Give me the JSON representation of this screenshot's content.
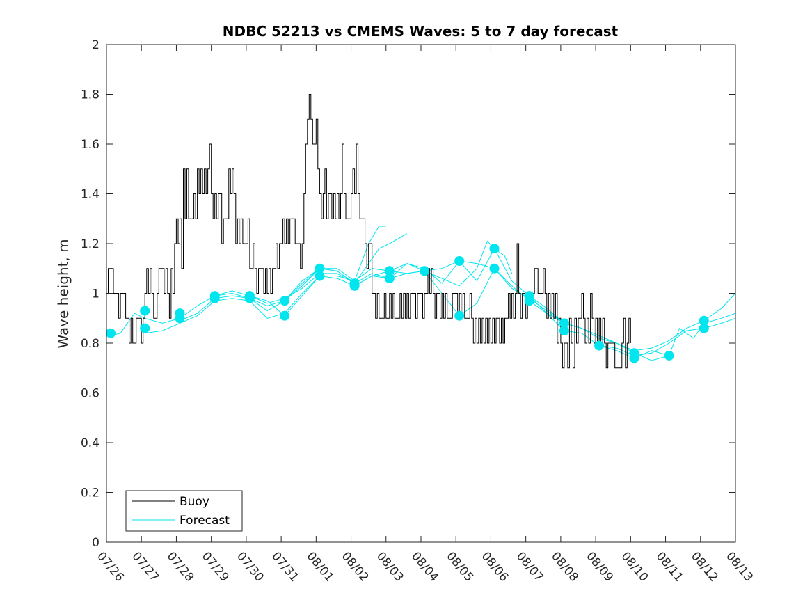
{
  "chart_data": {
    "type": "line",
    "title": "NDBC 52213 vs CMEMS Waves: 5 to 7 day forecast",
    "xlabel": "",
    "ylabel": "Wave height, m",
    "xlim": [
      0,
      18
    ],
    "ylim": [
      0,
      2
    ],
    "x_ticks": [
      "07/26",
      "07/27",
      "07/28",
      "07/29",
      "07/30",
      "07/31",
      "08/01",
      "08/02",
      "08/03",
      "08/04",
      "08/05",
      "08/06",
      "08/07",
      "08/08",
      "08/09",
      "08/10",
      "08/11",
      "08/12",
      "08/13"
    ],
    "y_ticks": [
      "0",
      "0.2",
      "0.4",
      "0.6",
      "0.8",
      "1",
      "1.2",
      "1.4",
      "1.6",
      "1.8",
      "2"
    ],
    "grid": false,
    "legend": {
      "placement": "bottom-left",
      "entries": [
        {
          "name": "Buoy",
          "color": "#000000"
        },
        {
          "name": "Forecast",
          "color": "#00e5ee"
        }
      ]
    },
    "colors": {
      "buoy": "#000000",
      "forecast": "#00e5ee",
      "axes": "#262626"
    },
    "series": [
      {
        "name": "Buoy",
        "x_unit": "days since 07/26",
        "points": [
          [
            0.0,
            1.0
          ],
          [
            0.05,
            1.1
          ],
          [
            0.15,
            1.1
          ],
          [
            0.2,
            1.0
          ],
          [
            0.3,
            1.0
          ],
          [
            0.35,
            0.9
          ],
          [
            0.4,
            1.0
          ],
          [
            0.5,
            1.0
          ],
          [
            0.55,
            0.9
          ],
          [
            0.6,
            0.9
          ],
          [
            0.65,
            0.8
          ],
          [
            0.7,
            0.9
          ],
          [
            0.75,
            0.8
          ],
          [
            0.85,
            0.9
          ],
          [
            0.95,
            0.9
          ],
          [
            1.0,
            0.8
          ],
          [
            1.05,
            0.9
          ],
          [
            1.1,
            1.0
          ],
          [
            1.15,
            1.1
          ],
          [
            1.2,
            1.0
          ],
          [
            1.25,
            1.1
          ],
          [
            1.3,
            1.0
          ],
          [
            1.35,
            0.9
          ],
          [
            1.45,
            1.0
          ],
          [
            1.5,
            1.1
          ],
          [
            1.6,
            1.1
          ],
          [
            1.65,
            1.0
          ],
          [
            1.7,
            1.1
          ],
          [
            1.75,
            1.0
          ],
          [
            1.8,
            0.9
          ],
          [
            1.85,
            1.1
          ],
          [
            1.9,
            1.0
          ],
          [
            1.95,
            1.2
          ],
          [
            2.0,
            1.3
          ],
          [
            2.05,
            1.2
          ],
          [
            2.1,
            1.3
          ],
          [
            2.15,
            1.1
          ],
          [
            2.2,
            1.5
          ],
          [
            2.25,
            1.3
          ],
          [
            2.3,
            1.5
          ],
          [
            2.35,
            1.3
          ],
          [
            2.45,
            1.3
          ],
          [
            2.5,
            1.4
          ],
          [
            2.55,
            1.3
          ],
          [
            2.6,
            1.5
          ],
          [
            2.65,
            1.4
          ],
          [
            2.7,
            1.5
          ],
          [
            2.75,
            1.4
          ],
          [
            2.8,
            1.5
          ],
          [
            2.85,
            1.4
          ],
          [
            2.9,
            1.5
          ],
          [
            2.95,
            1.6
          ],
          [
            3.0,
            1.4
          ],
          [
            3.05,
            1.3
          ],
          [
            3.1,
            1.4
          ],
          [
            3.15,
            1.3
          ],
          [
            3.2,
            1.4
          ],
          [
            3.3,
            1.2
          ],
          [
            3.35,
            1.3
          ],
          [
            3.45,
            1.3
          ],
          [
            3.5,
            1.5
          ],
          [
            3.55,
            1.4
          ],
          [
            3.6,
            1.5
          ],
          [
            3.65,
            1.4
          ],
          [
            3.7,
            1.2
          ],
          [
            3.75,
            1.3
          ],
          [
            3.8,
            1.2
          ],
          [
            3.85,
            1.3
          ],
          [
            3.9,
            1.2
          ],
          [
            4.0,
            1.2
          ],
          [
            4.05,
            1.3
          ],
          [
            4.1,
            1.1
          ],
          [
            4.2,
            1.2
          ],
          [
            4.25,
            1.1
          ],
          [
            4.3,
            1.0
          ],
          [
            4.35,
            1.1
          ],
          [
            4.45,
            1.1
          ],
          [
            4.5,
            1.0
          ],
          [
            4.55,
            1.1
          ],
          [
            4.6,
            1.0
          ],
          [
            4.65,
            1.1
          ],
          [
            4.7,
            1.0
          ],
          [
            4.75,
            1.1
          ],
          [
            4.8,
            1.1
          ],
          [
            4.85,
            1.2
          ],
          [
            4.9,
            1.1
          ],
          [
            4.95,
            1.2
          ],
          [
            5.0,
            1.2
          ],
          [
            5.05,
            1.3
          ],
          [
            5.1,
            1.2
          ],
          [
            5.15,
            1.3
          ],
          [
            5.2,
            1.2
          ],
          [
            5.25,
            1.3
          ],
          [
            5.35,
            1.3
          ],
          [
            5.4,
            1.2
          ],
          [
            5.5,
            1.2
          ],
          [
            5.55,
            1.1
          ],
          [
            5.6,
            1.2
          ],
          [
            5.65,
            1.4
          ],
          [
            5.7,
            1.6
          ],
          [
            5.75,
            1.7
          ],
          [
            5.8,
            1.8
          ],
          [
            5.85,
            1.7
          ],
          [
            5.9,
            1.6
          ],
          [
            5.95,
            1.6
          ],
          [
            6.0,
            1.7
          ],
          [
            6.05,
            1.5
          ],
          [
            6.1,
            1.4
          ],
          [
            6.15,
            1.3
          ],
          [
            6.2,
            1.4
          ],
          [
            6.25,
            1.5
          ],
          [
            6.3,
            1.3
          ],
          [
            6.35,
            1.4
          ],
          [
            6.45,
            1.3
          ],
          [
            6.5,
            1.4
          ],
          [
            6.55,
            1.3
          ],
          [
            6.6,
            1.4
          ],
          [
            6.65,
            1.3
          ],
          [
            6.7,
            1.4
          ],
          [
            6.75,
            1.6
          ],
          [
            6.8,
            1.4
          ],
          [
            6.85,
            1.3
          ],
          [
            6.95,
            1.3
          ],
          [
            7.0,
            1.4
          ],
          [
            7.05,
            1.5
          ],
          [
            7.1,
            1.4
          ],
          [
            7.15,
            1.6
          ],
          [
            7.2,
            1.4
          ],
          [
            7.25,
            1.3
          ],
          [
            7.35,
            1.3
          ],
          [
            7.4,
            1.2
          ],
          [
            7.45,
            1.1
          ],
          [
            7.5,
            1.2
          ],
          [
            7.55,
            1.2
          ],
          [
            7.6,
            1.0
          ],
          [
            7.65,
            1.0
          ],
          [
            7.7,
            0.9
          ],
          [
            7.75,
            1.0
          ],
          [
            7.8,
            0.9
          ],
          [
            7.9,
            0.9
          ],
          [
            7.95,
            1.0
          ],
          [
            8.0,
            0.9
          ],
          [
            8.05,
            0.9
          ],
          [
            8.1,
            1.0
          ],
          [
            8.15,
            0.9
          ],
          [
            8.2,
            1.0
          ],
          [
            8.25,
            0.9
          ],
          [
            8.35,
            0.9
          ],
          [
            8.4,
            1.0
          ],
          [
            8.45,
            0.9
          ],
          [
            8.5,
            1.0
          ],
          [
            8.55,
            0.9
          ],
          [
            8.6,
            1.0
          ],
          [
            8.65,
            0.9
          ],
          [
            8.7,
            1.0
          ],
          [
            8.8,
            1.0
          ],
          [
            8.85,
            0.9
          ],
          [
            8.9,
            1.0
          ],
          [
            9.0,
            1.0
          ],
          [
            9.05,
            0.9
          ],
          [
            9.1,
            1.0
          ],
          [
            9.15,
            1.0
          ],
          [
            9.2,
            1.1
          ],
          [
            9.25,
            1.0
          ],
          [
            9.3,
            1.1
          ],
          [
            9.35,
            1.0
          ],
          [
            9.4,
            0.9
          ],
          [
            9.45,
            1.0
          ],
          [
            9.5,
            1.0
          ],
          [
            9.55,
            0.9
          ],
          [
            9.6,
            1.0
          ],
          [
            9.65,
            0.9
          ],
          [
            9.7,
            1.0
          ],
          [
            9.75,
            0.9
          ],
          [
            9.85,
            0.9
          ],
          [
            9.9,
            1.0
          ],
          [
            10.0,
            1.0
          ],
          [
            10.05,
            0.9
          ],
          [
            10.1,
            1.0
          ],
          [
            10.15,
            0.9
          ],
          [
            10.2,
            1.0
          ],
          [
            10.25,
            0.9
          ],
          [
            10.35,
            0.9
          ],
          [
            10.4,
            1.0
          ],
          [
            10.45,
            0.9
          ],
          [
            10.5,
            0.8
          ],
          [
            10.55,
            0.9
          ],
          [
            10.6,
            0.8
          ],
          [
            10.65,
            0.9
          ],
          [
            10.7,
            0.8
          ],
          [
            10.75,
            0.9
          ],
          [
            10.8,
            0.8
          ],
          [
            10.85,
            0.9
          ],
          [
            10.9,
            0.8
          ],
          [
            10.95,
            0.9
          ],
          [
            11.0,
            0.8
          ],
          [
            11.05,
            0.9
          ],
          [
            11.1,
            0.8
          ],
          [
            11.15,
            0.9
          ],
          [
            11.2,
            0.9
          ],
          [
            11.25,
            0.8
          ],
          [
            11.3,
            0.9
          ],
          [
            11.35,
            0.8
          ],
          [
            11.4,
            0.9
          ],
          [
            11.45,
            0.9
          ],
          [
            11.5,
            1.0
          ],
          [
            11.55,
            0.9
          ],
          [
            11.6,
            1.0
          ],
          [
            11.65,
            0.9
          ],
          [
            11.7,
            1.0
          ],
          [
            11.75,
            1.2
          ],
          [
            11.8,
            1.0
          ],
          [
            11.85,
            0.9
          ],
          [
            11.9,
            1.0
          ],
          [
            11.95,
            1.0
          ],
          [
            12.0,
            0.9
          ],
          [
            12.05,
            1.0
          ],
          [
            12.1,
            1.0
          ],
          [
            12.15,
            1.0
          ],
          [
            12.2,
            1.0
          ],
          [
            12.25,
            1.1
          ],
          [
            12.3,
            1.1
          ],
          [
            12.35,
            1.0
          ],
          [
            12.4,
            1.0
          ],
          [
            12.45,
            1.0
          ],
          [
            12.5,
            1.1
          ],
          [
            12.55,
            1.0
          ],
          [
            12.6,
            0.9
          ],
          [
            12.65,
            1.0
          ],
          [
            12.7,
            0.9
          ],
          [
            12.75,
            1.0
          ],
          [
            12.8,
            0.9
          ],
          [
            12.85,
            1.0
          ],
          [
            12.9,
            0.8
          ],
          [
            12.95,
            0.9
          ],
          [
            13.0,
            0.8
          ],
          [
            13.05,
            0.7
          ],
          [
            13.1,
            0.8
          ],
          [
            13.15,
            0.8
          ],
          [
            13.2,
            0.7
          ],
          [
            13.25,
            0.9
          ],
          [
            13.3,
            0.8
          ],
          [
            13.35,
            0.7
          ],
          [
            13.4,
            0.9
          ],
          [
            13.45,
            0.8
          ],
          [
            13.5,
            0.9
          ],
          [
            13.55,
            0.9
          ],
          [
            13.6,
            1.0
          ],
          [
            13.65,
            0.9
          ],
          [
            13.7,
            0.8
          ],
          [
            13.75,
            0.9
          ],
          [
            13.8,
            0.8
          ],
          [
            13.85,
            1.0
          ],
          [
            13.9,
            0.9
          ],
          [
            13.95,
            0.8
          ],
          [
            14.0,
            0.9
          ],
          [
            14.05,
            0.8
          ],
          [
            14.1,
            0.9
          ],
          [
            14.15,
            0.8
          ],
          [
            14.2,
            0.9
          ],
          [
            14.25,
            0.8
          ],
          [
            14.3,
            0.7
          ],
          [
            14.35,
            0.8
          ],
          [
            14.4,
            0.8
          ],
          [
            14.45,
            0.8
          ],
          [
            14.5,
            0.8
          ],
          [
            14.55,
            0.7
          ],
          [
            14.6,
            0.7
          ],
          [
            14.65,
            0.7
          ],
          [
            14.7,
            0.7
          ],
          [
            14.75,
            0.8
          ],
          [
            14.8,
            0.9
          ],
          [
            14.85,
            0.7
          ],
          [
            14.9,
            0.8
          ],
          [
            14.95,
            0.9
          ],
          [
            15.0,
            0.8
          ]
        ]
      }
    ],
    "forecast_markers": [
      [
        0.12,
        0.84
      ],
      [
        1.1,
        0.93
      ],
      [
        1.1,
        0.86
      ],
      [
        2.1,
        0.92
      ],
      [
        2.1,
        0.9
      ],
      [
        3.1,
        0.99
      ],
      [
        3.1,
        0.98
      ],
      [
        4.1,
        0.99
      ],
      [
        4.1,
        0.98
      ],
      [
        5.1,
        0.97
      ],
      [
        5.1,
        0.91
      ],
      [
        6.1,
        1.1
      ],
      [
        6.1,
        1.07
      ],
      [
        7.1,
        1.04
      ],
      [
        7.1,
        1.03
      ],
      [
        8.1,
        1.09
      ],
      [
        8.1,
        1.06
      ],
      [
        9.1,
        1.09
      ],
      [
        10.1,
        1.13
      ],
      [
        10.1,
        0.91
      ],
      [
        11.1,
        1.18
      ],
      [
        11.1,
        1.1
      ],
      [
        12.1,
        0.99
      ],
      [
        12.1,
        0.97
      ],
      [
        13.1,
        0.88
      ],
      [
        13.1,
        0.85
      ],
      [
        14.1,
        0.79
      ],
      [
        15.1,
        0.76
      ],
      [
        15.1,
        0.74
      ],
      [
        16.1,
        0.75
      ],
      [
        17.1,
        0.89
      ],
      [
        17.1,
        0.86
      ]
    ]
  }
}
